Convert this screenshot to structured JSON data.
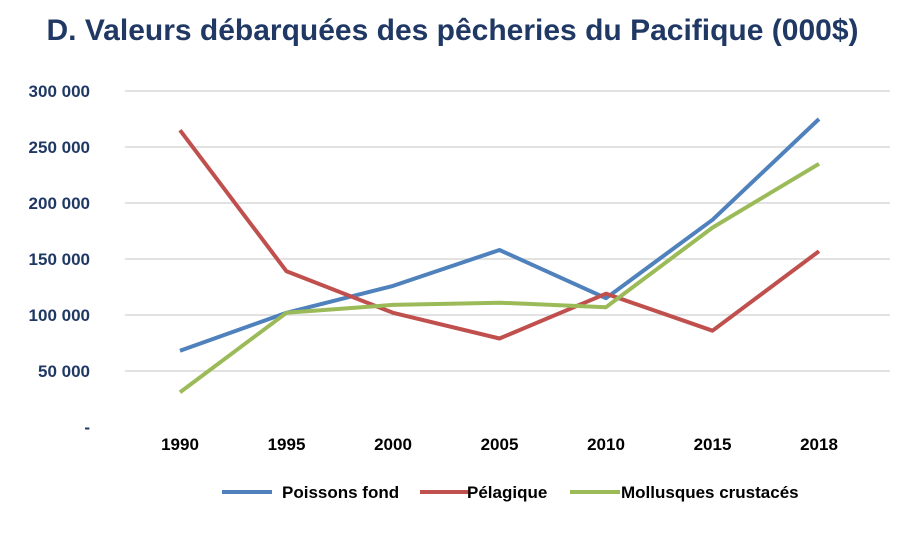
{
  "chart_data": {
    "type": "line",
    "title": "D. Valeurs débarquées des pêcheries du Pacifique (000$)",
    "xlabel": "",
    "ylabel": "",
    "categories": [
      "1990",
      "1995",
      "2000",
      "2005",
      "2010",
      "2015",
      "2018"
    ],
    "y_ticks": [
      "-",
      "50 000",
      "100 000",
      "150 000",
      "200 000",
      "250 000",
      "300 000"
    ],
    "ylim": [
      0,
      300000
    ],
    "grid": true,
    "legend": "bottom",
    "series": [
      {
        "name": "Poissons fond",
        "color": "#4f81bd",
        "values": [
          68000,
          102000,
          126000,
          158000,
          115000,
          185000,
          275000
        ]
      },
      {
        "name": "Pélagique",
        "color": "#c0504d",
        "values": [
          265000,
          139000,
          102000,
          79000,
          119000,
          86000,
          157000
        ]
      },
      {
        "name": "Mollusques crustacés",
        "color": "#9bbb59",
        "values": [
          31000,
          102000,
          109000,
          111000,
          107000,
          178000,
          235000
        ]
      }
    ]
  }
}
